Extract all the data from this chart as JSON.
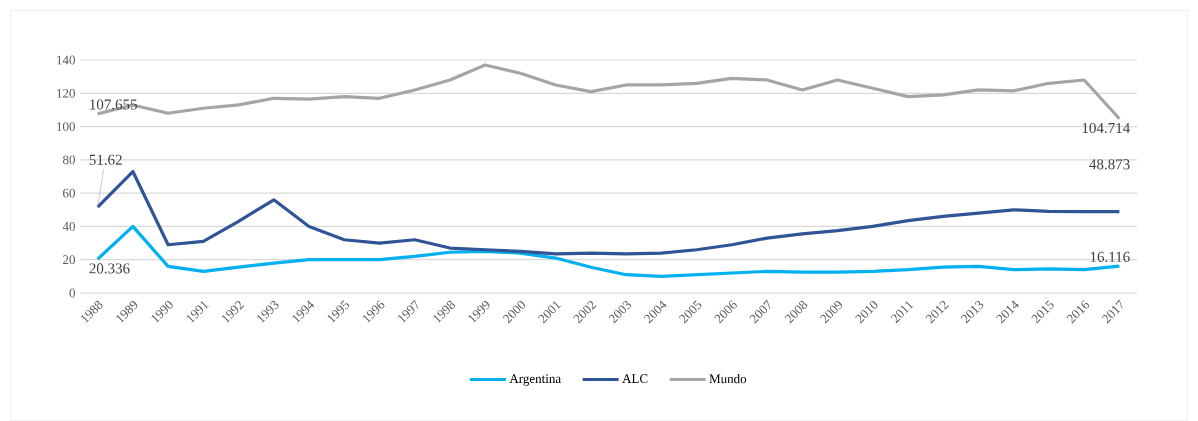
{
  "chart_data": {
    "type": "line",
    "categories": [
      "1988",
      "1989",
      "1990",
      "1991",
      "1992",
      "1993",
      "1994",
      "1995",
      "1996",
      "1997",
      "1998",
      "1999",
      "2000",
      "2001",
      "2002",
      "2003",
      "2004",
      "2005",
      "2006",
      "2007",
      "2008",
      "2009",
      "2010",
      "2011",
      "2012",
      "2013",
      "2014",
      "2015",
      "2016",
      "2017"
    ],
    "series": [
      {
        "name": "Argentina",
        "color": "#00b0f0",
        "values": [
          20.336,
          40,
          16,
          13,
          15.5,
          18,
          20,
          20,
          20,
          22,
          24.5,
          25,
          24,
          21,
          15.5,
          11,
          10,
          11,
          12,
          13,
          12.5,
          12.5,
          13,
          14,
          15.5,
          16,
          14,
          14.5,
          14,
          16.116
        ],
        "value_labels": [
          "20.336",
          null,
          null,
          null,
          null,
          null,
          null,
          null,
          null,
          null,
          null,
          null,
          null,
          null,
          null,
          null,
          null,
          null,
          null,
          null,
          null,
          null,
          null,
          null,
          null,
          null,
          null,
          null,
          null,
          "16.116"
        ]
      },
      {
        "name": "ALC",
        "color": "#2f5597",
        "values": [
          51.62,
          73,
          29,
          31,
          43,
          56,
          40,
          32,
          30,
          32,
          27,
          26,
          25,
          23.5,
          24,
          23.5,
          24,
          26,
          29,
          33,
          35.5,
          37.5,
          40,
          43.5,
          46,
          48,
          50,
          49,
          48.9,
          48.873
        ],
        "value_labels": [
          "51.62",
          null,
          null,
          null,
          null,
          null,
          null,
          null,
          null,
          null,
          null,
          null,
          null,
          null,
          null,
          null,
          null,
          null,
          null,
          null,
          null,
          null,
          null,
          null,
          null,
          null,
          null,
          null,
          null,
          "48.873"
        ]
      },
      {
        "name": "Mundo",
        "color": "#a5a5a5",
        "values": [
          107.655,
          113,
          108,
          111,
          113,
          117,
          116.5,
          118,
          117,
          122,
          128,
          137,
          132,
          125,
          121,
          125,
          125,
          126,
          129,
          128,
          122,
          128,
          123,
          118,
          119,
          122,
          121.5,
          126,
          128,
          104.714
        ],
        "value_labels": [
          "107.655",
          null,
          null,
          null,
          null,
          null,
          null,
          null,
          null,
          null,
          null,
          null,
          null,
          null,
          null,
          null,
          null,
          null,
          null,
          null,
          null,
          null,
          null,
          null,
          null,
          null,
          null,
          null,
          null,
          "104.714"
        ]
      }
    ],
    "ylim": [
      0,
      140
    ],
    "yticks": [
      0,
      20,
      40,
      60,
      80,
      100,
      120,
      140
    ],
    "grid": "y",
    "legend": "bottom",
    "marker": "none",
    "line_style": "solid"
  }
}
